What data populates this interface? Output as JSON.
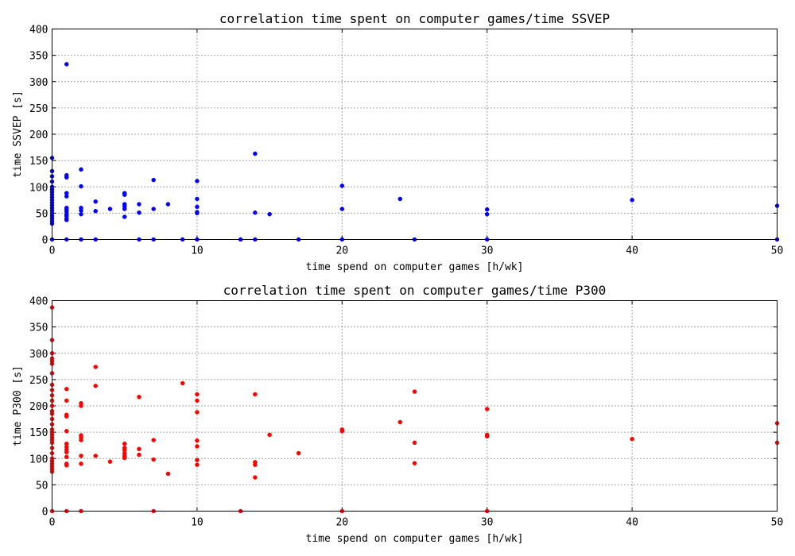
{
  "chart_data": [
    {
      "type": "scatter",
      "title": "correlation time spent on computer games/time SSVEP",
      "xlabel": "time spend on computer games [h/wk]",
      "ylabel": "time SSVEP [s]",
      "xlim": [
        0,
        50
      ],
      "ylim": [
        0,
        400
      ],
      "xticks": [
        0,
        10,
        20,
        30,
        40,
        50
      ],
      "yticks": [
        0,
        50,
        100,
        150,
        200,
        250,
        300,
        350,
        400
      ],
      "grid": true,
      "color": "#0000ff",
      "points": [
        [
          0,
          155
        ],
        [
          0,
          130
        ],
        [
          0,
          120
        ],
        [
          0,
          110
        ],
        [
          0,
          100
        ],
        [
          0,
          95
        ],
        [
          0,
          90
        ],
        [
          0,
          85
        ],
        [
          0,
          80
        ],
        [
          0,
          75
        ],
        [
          0,
          70
        ],
        [
          0,
          65
        ],
        [
          0,
          60
        ],
        [
          0,
          55
        ],
        [
          0,
          50
        ],
        [
          0,
          45
        ],
        [
          0,
          40
        ],
        [
          0,
          35
        ],
        [
          0,
          30
        ],
        [
          0,
          0
        ],
        [
          1,
          333
        ],
        [
          1,
          122
        ],
        [
          1,
          118
        ],
        [
          1,
          88
        ],
        [
          1,
          82
        ],
        [
          1,
          60
        ],
        [
          1,
          57
        ],
        [
          1,
          53
        ],
        [
          1,
          48
        ],
        [
          1,
          45
        ],
        [
          1,
          40
        ],
        [
          1,
          37
        ],
        [
          1,
          0
        ],
        [
          2,
          133
        ],
        [
          2,
          101
        ],
        [
          2,
          60
        ],
        [
          2,
          55
        ],
        [
          2,
          48
        ],
        [
          2,
          0
        ],
        [
          3,
          72
        ],
        [
          3,
          54
        ],
        [
          3,
          0
        ],
        [
          4,
          58
        ],
        [
          5,
          88
        ],
        [
          5,
          85
        ],
        [
          5,
          67
        ],
        [
          5,
          63
        ],
        [
          5,
          58
        ],
        [
          5,
          43
        ],
        [
          6,
          67
        ],
        [
          6,
          51
        ],
        [
          6,
          0
        ],
        [
          7,
          113
        ],
        [
          7,
          58
        ],
        [
          7,
          0
        ],
        [
          8,
          67
        ],
        [
          9,
          0
        ],
        [
          10,
          111
        ],
        [
          10,
          77
        ],
        [
          10,
          62
        ],
        [
          10,
          52
        ],
        [
          10,
          50
        ],
        [
          10,
          0
        ],
        [
          13,
          0
        ],
        [
          14,
          163
        ],
        [
          14,
          51
        ],
        [
          14,
          0
        ],
        [
          15,
          48
        ],
        [
          17,
          0
        ],
        [
          20,
          102
        ],
        [
          20,
          58
        ],
        [
          20,
          0
        ],
        [
          24,
          77
        ],
        [
          25,
          0
        ],
        [
          30,
          57
        ],
        [
          30,
          48
        ],
        [
          30,
          0
        ],
        [
          40,
          75
        ],
        [
          50,
          64
        ],
        [
          50,
          0
        ]
      ]
    },
    {
      "type": "scatter",
      "title": "correlation time spent on computer games/time P300",
      "xlabel": "time spend on computer games [h/wk]",
      "ylabel": "time P300 [s]",
      "xlim": [
        0,
        50
      ],
      "ylim": [
        0,
        400
      ],
      "xticks": [
        0,
        10,
        20,
        30,
        40,
        50
      ],
      "yticks": [
        0,
        50,
        100,
        150,
        200,
        250,
        300,
        350,
        400
      ],
      "grid": true,
      "color": "#ff0000",
      "points": [
        [
          0,
          387
        ],
        [
          0,
          325
        ],
        [
          0,
          300
        ],
        [
          0,
          290
        ],
        [
          0,
          285
        ],
        [
          0,
          280
        ],
        [
          0,
          262
        ],
        [
          0,
          240
        ],
        [
          0,
          230
        ],
        [
          0,
          220
        ],
        [
          0,
          210
        ],
        [
          0,
          200
        ],
        [
          0,
          190
        ],
        [
          0,
          185
        ],
        [
          0,
          175
        ],
        [
          0,
          165
        ],
        [
          0,
          155
        ],
        [
          0,
          150
        ],
        [
          0,
          145
        ],
        [
          0,
          140
        ],
        [
          0,
          135
        ],
        [
          0,
          130
        ],
        [
          0,
          120
        ],
        [
          0,
          110
        ],
        [
          0,
          100
        ],
        [
          0,
          95
        ],
        [
          0,
          90
        ],
        [
          0,
          85
        ],
        [
          0,
          80
        ],
        [
          0,
          75
        ],
        [
          0,
          0
        ],
        [
          1,
          232
        ],
        [
          1,
          210
        ],
        [
          1,
          183
        ],
        [
          1,
          180
        ],
        [
          1,
          152
        ],
        [
          1,
          128
        ],
        [
          1,
          122
        ],
        [
          1,
          117
        ],
        [
          1,
          112
        ],
        [
          1,
          103
        ],
        [
          1,
          90
        ],
        [
          1,
          87
        ],
        [
          1,
          0
        ],
        [
          2,
          205
        ],
        [
          2,
          200
        ],
        [
          2,
          144
        ],
        [
          2,
          140
        ],
        [
          2,
          135
        ],
        [
          2,
          105
        ],
        [
          2,
          90
        ],
        [
          2,
          0
        ],
        [
          3,
          274
        ],
        [
          3,
          238
        ],
        [
          3,
          105
        ],
        [
          4,
          94
        ],
        [
          5,
          128
        ],
        [
          5,
          120
        ],
        [
          5,
          116
        ],
        [
          5,
          110
        ],
        [
          5,
          105
        ],
        [
          5,
          101
        ],
        [
          6,
          217
        ],
        [
          6,
          118
        ],
        [
          6,
          107
        ],
        [
          7,
          135
        ],
        [
          7,
          98
        ],
        [
          7,
          0
        ],
        [
          8,
          71
        ],
        [
          9,
          243
        ],
        [
          10,
          222
        ],
        [
          10,
          210
        ],
        [
          10,
          188
        ],
        [
          10,
          134
        ],
        [
          10,
          123
        ],
        [
          10,
          97
        ],
        [
          10,
          88
        ],
        [
          13,
          0
        ],
        [
          14,
          222
        ],
        [
          14,
          93
        ],
        [
          14,
          88
        ],
        [
          14,
          64
        ],
        [
          15,
          145
        ],
        [
          17,
          110
        ],
        [
          20,
          155
        ],
        [
          20,
          152
        ],
        [
          20,
          0
        ],
        [
          24,
          169
        ],
        [
          25,
          227
        ],
        [
          25,
          130
        ],
        [
          25,
          91
        ],
        [
          30,
          194
        ],
        [
          30,
          145
        ],
        [
          30,
          142
        ],
        [
          30,
          0
        ],
        [
          40,
          137
        ],
        [
          50,
          167
        ],
        [
          50,
          130
        ]
      ]
    }
  ]
}
